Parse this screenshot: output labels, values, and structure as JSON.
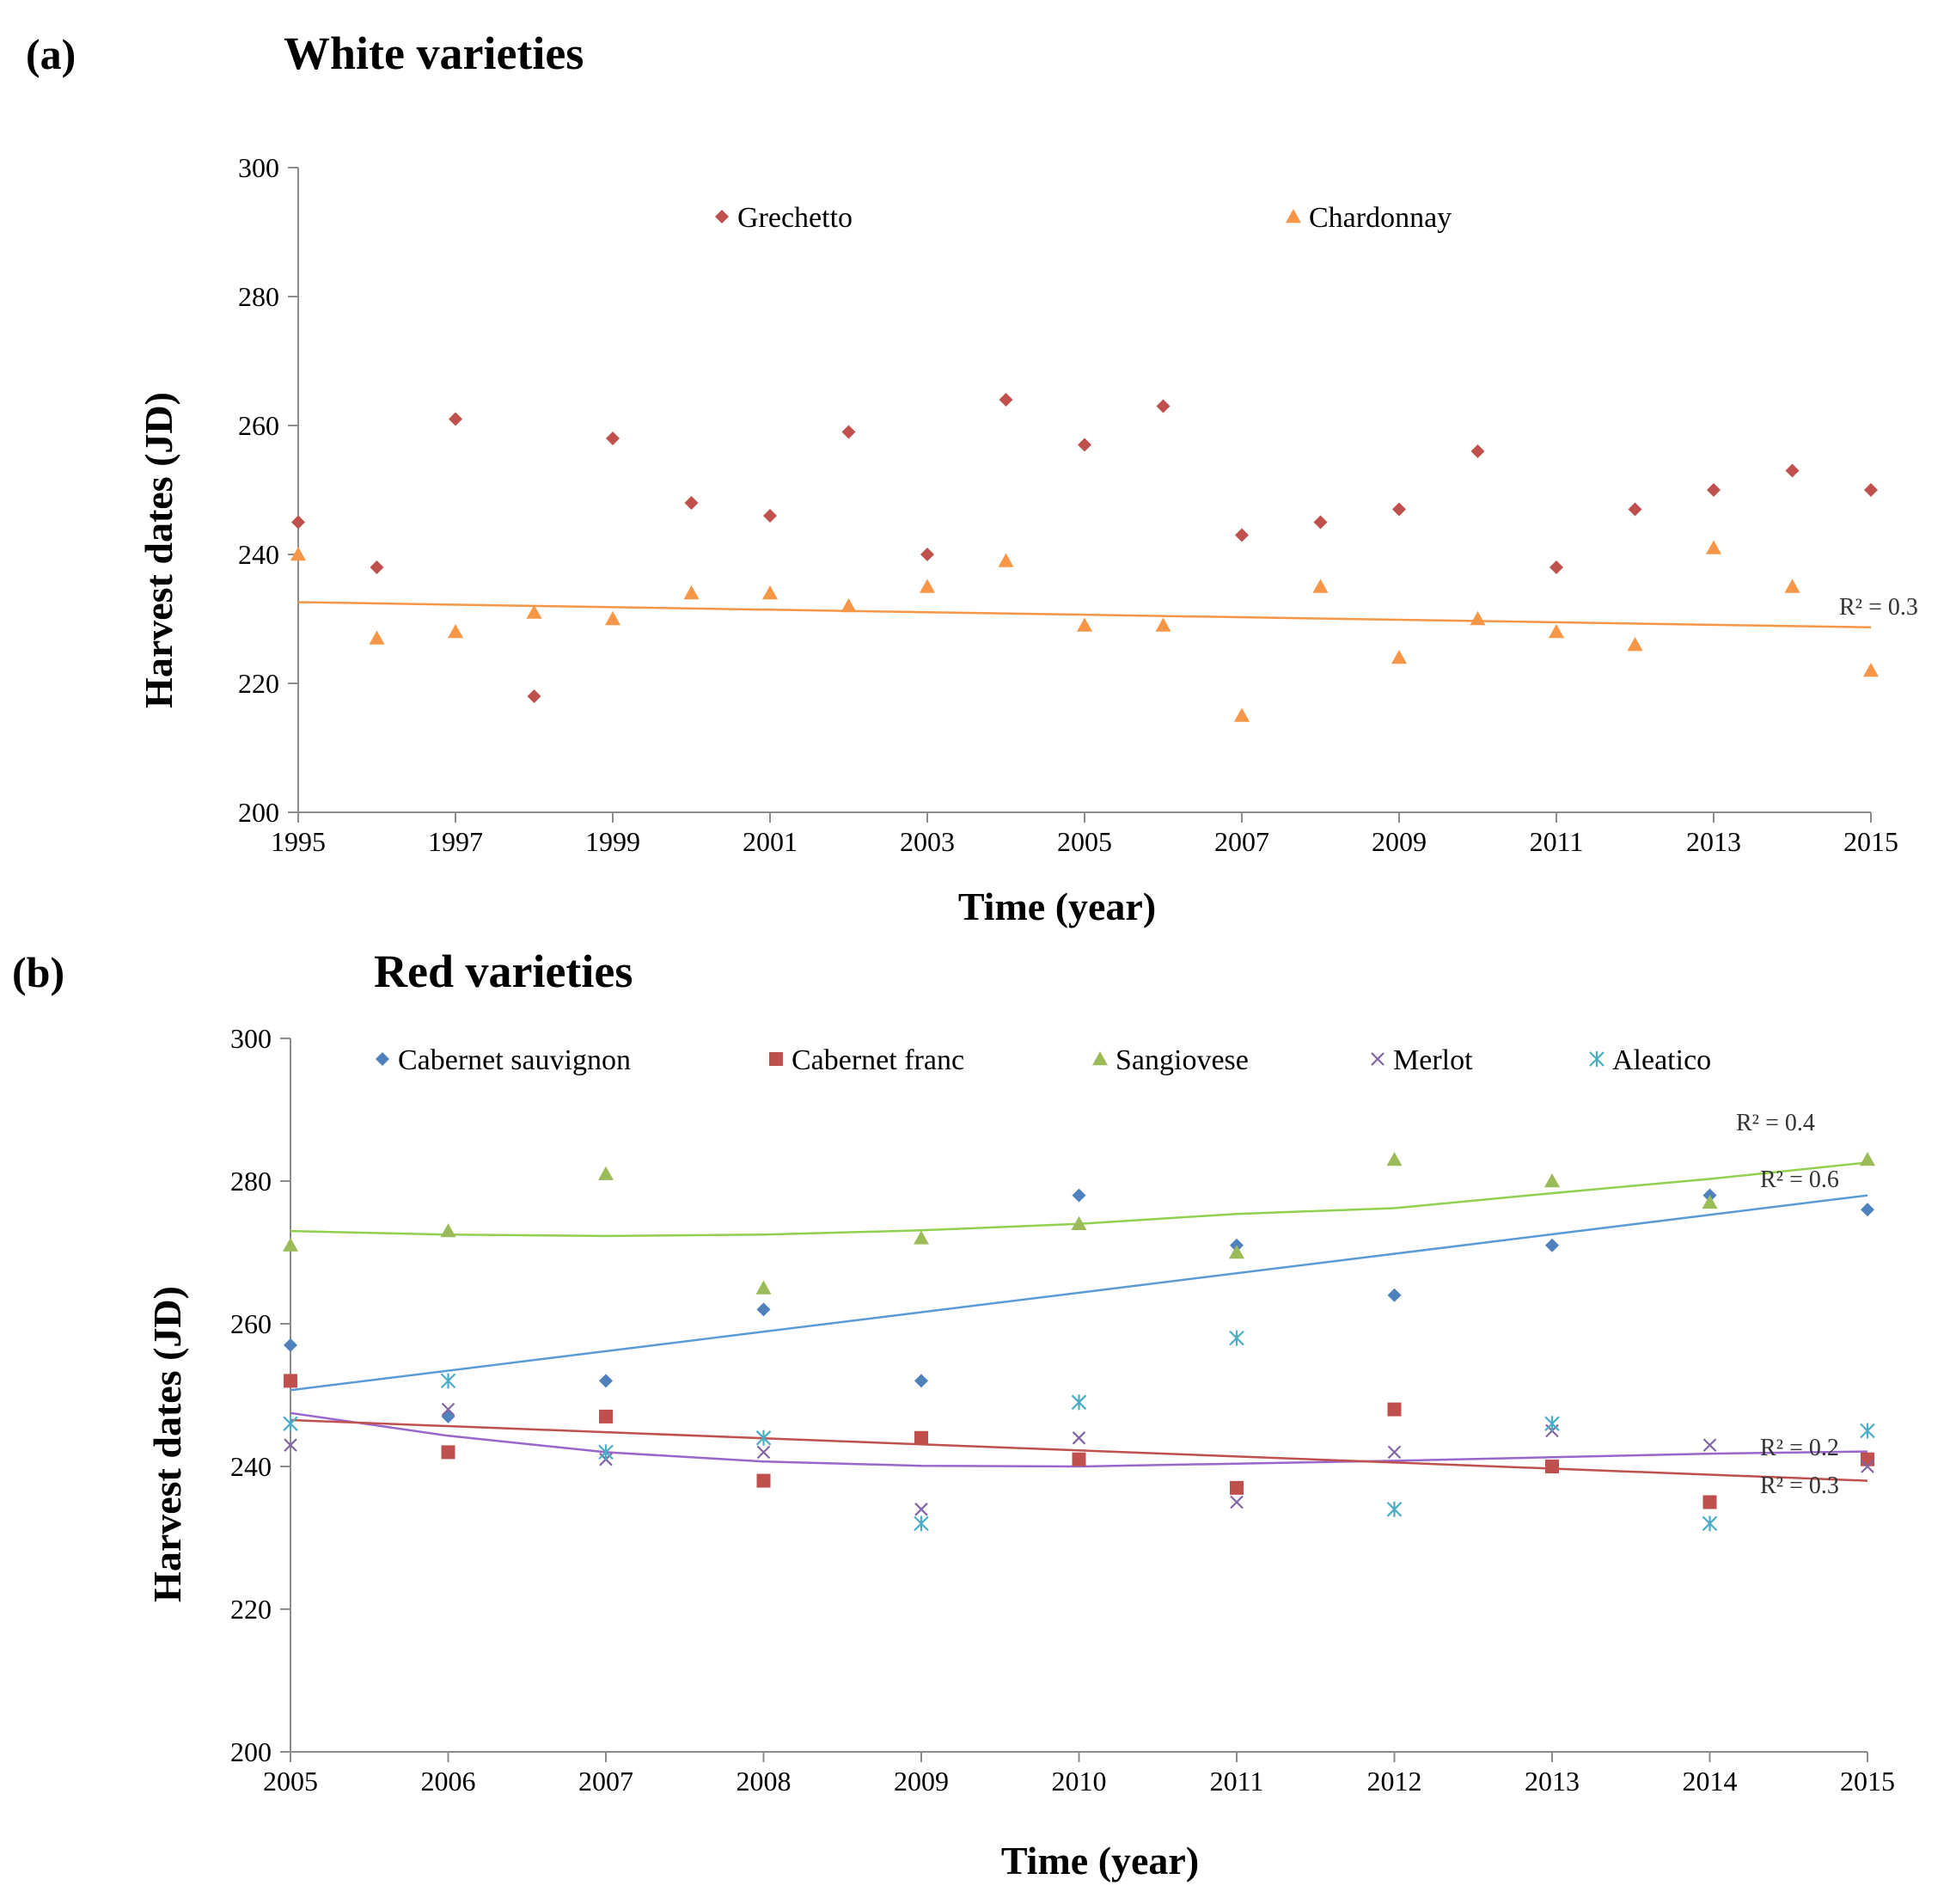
{
  "chart_data": [
    {
      "id": "a",
      "panel_label": "(a)",
      "type": "scatter",
      "title": "White varieties",
      "xlabel": "Time (year)",
      "ylabel": "Harvest dates  (JD)",
      "xlim": [
        1995,
        2015
      ],
      "ylim": [
        200,
        300
      ],
      "xticks": [
        1995,
        1997,
        1999,
        2001,
        2003,
        2005,
        2007,
        2009,
        2011,
        2013,
        2015
      ],
      "xtick_labels": [
        "1995",
        "1997",
        "1999",
        "2001",
        "2003",
        "2005",
        "2007",
        "2009",
        "2011",
        "2013",
        "2015"
      ],
      "yticks": [
        200,
        220,
        240,
        260,
        280,
        300
      ],
      "ytick_labels": [
        "200",
        "220",
        "240",
        "260",
        "280",
        "300"
      ],
      "legend_position": "top",
      "series": [
        {
          "name": "Grechetto",
          "marker": "diamond",
          "color": "#C0504D",
          "x": [
            1995,
            1996,
            1997,
            1998,
            1999,
            2000,
            2001,
            2002,
            2003,
            2004,
            2005,
            2006,
            2007,
            2008,
            2009,
            2010,
            2011,
            2012,
            2013,
            2014,
            2015
          ],
          "y": [
            245,
            238,
            261,
            218,
            258,
            248,
            246,
            259,
            240,
            264,
            257,
            263,
            243,
            245,
            247,
            256,
            238,
            247,
            250,
            253,
            250
          ]
        },
        {
          "name": "Chardonnay",
          "marker": "triangle",
          "color": "#F79646",
          "x": [
            1995,
            1996,
            1997,
            1998,
            1999,
            2000,
            2001,
            2002,
            2003,
            2004,
            2005,
            2006,
            2007,
            2008,
            2009,
            2010,
            2011,
            2012,
            2013,
            2014,
            2015
          ],
          "y": [
            240,
            227,
            228,
            231,
            230,
            234,
            234,
            232,
            235,
            239,
            229,
            229,
            215,
            235,
            224,
            230,
            228,
            226,
            241,
            235,
            222
          ]
        }
      ],
      "trendlines": [
        {
          "series": "Chardonnay",
          "kind": "linear",
          "color": "#F79646",
          "x": [
            1995,
            2015
          ],
          "y": [
            232.6,
            228.7
          ],
          "label": "R² = 0.3"
        }
      ]
    },
    {
      "id": "b",
      "panel_label": "(b)",
      "type": "scatter",
      "title": "Red varieties",
      "xlabel": "Time (year)",
      "ylabel": "Harvest dates  (JD)",
      "xlim": [
        2005,
        2015
      ],
      "ylim": [
        200,
        300
      ],
      "xticks": [
        2005,
        2006,
        2007,
        2008,
        2009,
        2010,
        2011,
        2012,
        2013,
        2014,
        2015
      ],
      "xtick_labels": [
        "2005",
        "2006",
        "2007",
        "2008",
        "2009",
        "2010",
        "2011",
        "2012",
        "2013",
        "2014",
        "2015"
      ],
      "yticks": [
        200,
        220,
        240,
        260,
        280,
        300
      ],
      "ytick_labels": [
        "200",
        "220",
        "240",
        "260",
        "280",
        "300"
      ],
      "legend_position": "top",
      "series": [
        {
          "name": "Cabernet sauvignon",
          "marker": "diamond",
          "color": "#4F81BD",
          "x": [
            2005,
            2006,
            2007,
            2008,
            2009,
            2010,
            2011,
            2012,
            2013,
            2014,
            2015
          ],
          "y": [
            257,
            247,
            252,
            262,
            252,
            278,
            271,
            264,
            271,
            278,
            276
          ]
        },
        {
          "name": "Cabernet franc",
          "marker": "square",
          "color": "#C0504D",
          "x": [
            2005,
            2006,
            2007,
            2008,
            2009,
            2010,
            2011,
            2012,
            2013,
            2014,
            2015
          ],
          "y": [
            252,
            242,
            247,
            238,
            244,
            241,
            237,
            248,
            240,
            235,
            241
          ]
        },
        {
          "name": "Sangiovese",
          "marker": "triangle",
          "color": "#9BBB59",
          "x": [
            2005,
            2006,
            2007,
            2008,
            2009,
            2010,
            2011,
            2012,
            2013,
            2014,
            2015
          ],
          "y": [
            271,
            273,
            281,
            265,
            272,
            274,
            270,
            283,
            280,
            277,
            283
          ]
        },
        {
          "name": "Merlot",
          "marker": "x",
          "color": "#8064A2",
          "x": [
            2005,
            2006,
            2007,
            2008,
            2009,
            2010,
            2011,
            2012,
            2013,
            2014,
            2015
          ],
          "y": [
            243,
            248,
            241,
            242,
            234,
            244,
            235,
            242,
            245,
            243,
            240
          ]
        },
        {
          "name": "Aleatico",
          "marker": "star",
          "color": "#4BACC6",
          "x": [
            2005,
            2006,
            2007,
            2008,
            2009,
            2010,
            2011,
            2012,
            2013,
            2014,
            2015
          ],
          "y": [
            246,
            252,
            242,
            244,
            232,
            249,
            258,
            234,
            246,
            232,
            245
          ]
        }
      ],
      "trendlines": [
        {
          "series": "Sangiovese",
          "kind": "polynomial",
          "color": "#92D050",
          "x": [
            2005,
            2006,
            2007,
            2008,
            2009,
            2010,
            2011,
            2012,
            2013,
            2014,
            2015
          ],
          "y": [
            273,
            272.5,
            272.3,
            272.5,
            273.1,
            274,
            275.4,
            276.2,
            278.3,
            280.3,
            282.6
          ],
          "label": "R² = 0.4"
        },
        {
          "series": "Cabernet sauvignon",
          "kind": "linear",
          "color": "#5B9BD5",
          "x": [
            2005,
            2015
          ],
          "y": [
            250.7,
            278
          ],
          "label": "R² = 0.6"
        },
        {
          "series": "Merlot",
          "kind": "polynomial",
          "color": "#9966CC",
          "x": [
            2005,
            2006,
            2007,
            2008,
            2009,
            2010,
            2011,
            2012,
            2013,
            2014,
            2015
          ],
          "y": [
            247.5,
            244.3,
            242,
            240.7,
            240.1,
            240,
            240.4,
            240.8,
            241.3,
            241.8,
            242.1
          ],
          "label": "R² = 0.2"
        },
        {
          "series": "Cabernet franc",
          "kind": "linear",
          "color": "#C0504D",
          "x": [
            2005,
            2015
          ],
          "y": [
            246.5,
            238
          ],
          "label": "R² = 0.3"
        }
      ]
    }
  ]
}
